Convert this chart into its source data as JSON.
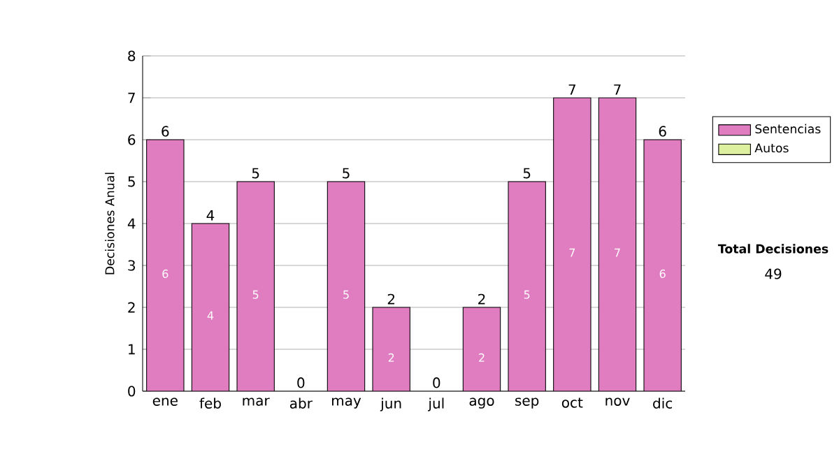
{
  "chart_data": {
    "type": "bar",
    "stacked": true,
    "ylabel": "Decisiones Anual",
    "categories": [
      "ene",
      "feb",
      "mar",
      "abr",
      "may",
      "jun",
      "jul",
      "ago",
      "sep",
      "oct",
      "nov",
      "dic"
    ],
    "series": [
      {
        "name": "Sentencias",
        "color": "#e07cc0",
        "values": [
          6,
          4,
          5,
          0,
          5,
          2,
          0,
          2,
          5,
          7,
          7,
          6
        ],
        "value_labels": [
          "6",
          "4",
          "5",
          null,
          "5",
          "2",
          null,
          "2",
          "5",
          "7",
          "7",
          "6"
        ]
      },
      {
        "name": "Autos",
        "color": "#ddf0a0",
        "values": [
          0,
          0,
          0,
          0,
          0,
          0,
          0,
          0,
          0,
          0,
          0,
          0
        ]
      }
    ],
    "totals": [
      "6",
      "4",
      "5",
      "0",
      "5",
      "2",
      "0",
      "2",
      "5",
      "7",
      "7",
      "6"
    ],
    "ylim": [
      0,
      8
    ],
    "yticks": [
      0,
      1,
      2,
      3,
      4,
      5,
      6,
      7,
      8
    ],
    "grid": "y",
    "legend": "right",
    "annotations": [
      "Total Decisiones",
      "49"
    ]
  }
}
